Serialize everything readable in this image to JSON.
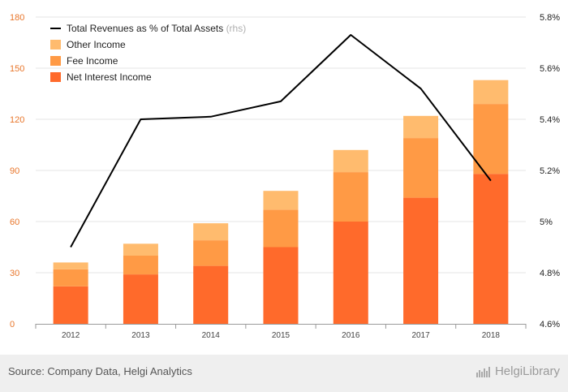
{
  "chart_data": {
    "type": "bar",
    "categories": [
      "2012",
      "2013",
      "2014",
      "2015",
      "2016",
      "2017",
      "2018"
    ],
    "series": [
      {
        "name": "Net Interest Income",
        "values": [
          22,
          29,
          34,
          45,
          60,
          74,
          88
        ],
        "color": "#ff6a2b"
      },
      {
        "name": "Fee Income",
        "values": [
          10,
          11,
          15,
          22,
          29,
          35,
          41
        ],
        "color": "#ff9a45"
      },
      {
        "name": "Other Income",
        "values": [
          4,
          7,
          10,
          11,
          13,
          13,
          14
        ],
        "color": "#ffbb6e"
      }
    ],
    "line_series": {
      "name": "Total Revenues as % of Total Assets",
      "suffix": "(rhs)",
      "values": [
        4.9,
        5.4,
        5.41,
        5.47,
        5.73,
        5.52,
        5.16
      ],
      "color": "#000000"
    },
    "ylim": [
      0,
      180
    ],
    "yticks": [
      "0",
      "30",
      "60",
      "90",
      "120",
      "150",
      "180"
    ],
    "y2lim": [
      4.6,
      5.8
    ],
    "y2ticks": [
      "4.6%",
      "4.8%",
      "5%",
      "5.2%",
      "5.4%",
      "5.6%",
      "5.8%"
    ],
    "stacked": true,
    "grid": true,
    "legend_position": "top-left"
  },
  "footer": {
    "source": "Source: Company Data, Helgi Analytics",
    "brand": "HelgiLibrary"
  },
  "colors": {
    "left_axis_text": "#e8762b",
    "right_axis_text": "#222222",
    "grid": "#e6e6e6"
  }
}
